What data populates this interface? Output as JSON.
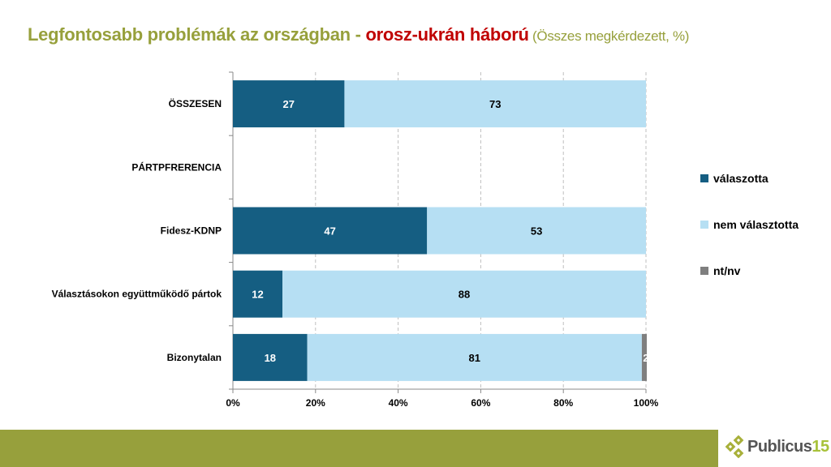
{
  "title": {
    "main": "Legfontosabb problémák az országban - ",
    "highlight": "orosz-ukrán háború",
    "note": " (Összes megkérdezett, %)"
  },
  "logo": {
    "text": "Publicus",
    "number": "15"
  },
  "chart_data": {
    "type": "bar",
    "orientation": "horizontal",
    "stacked": "percent",
    "categories": [
      "ÖSSZESEN",
      "PÁRTPFRERENCIA",
      "Fidesz-KDNP",
      "Választásokon együttműködő pártok",
      "Bizonytalan"
    ],
    "series": [
      {
        "name": "válaszotta",
        "color": "#155e82",
        "values": [
          27,
          null,
          47,
          12,
          18
        ],
        "labels": [
          "27",
          "",
          "47",
          "12",
          "18"
        ]
      },
      {
        "name": "nem választotta",
        "color": "#b6dff3",
        "values": [
          73,
          null,
          53,
          88,
          81
        ],
        "labels": [
          "73",
          "",
          "53",
          "88",
          "81"
        ]
      },
      {
        "name": "nt/nv",
        "color": "#7f7f7f",
        "values": [
          0,
          null,
          0,
          0,
          2
        ],
        "labels": [
          "0",
          "",
          "",
          "",
          "2"
        ]
      }
    ],
    "xticks": [
      "0%",
      "20%",
      "40%",
      "60%",
      "80%",
      "100%"
    ],
    "xlim": [
      0,
      100
    ],
    "grid": "vertical dashed",
    "legend": "right"
  },
  "colors": {
    "brand": "#97a03c",
    "accent": "#c00000"
  }
}
